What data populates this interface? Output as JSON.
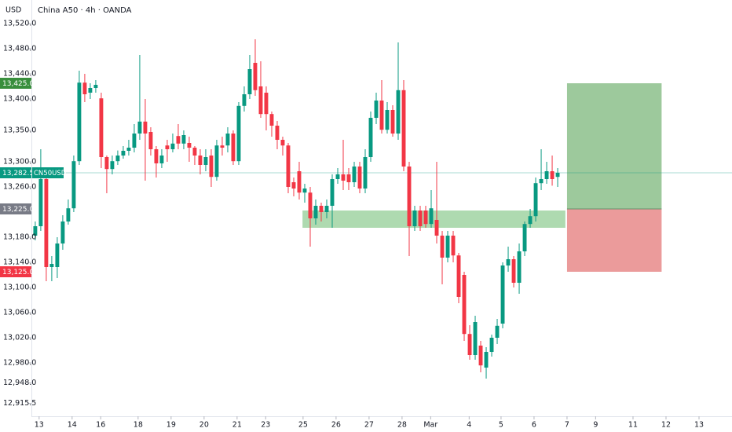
{
  "chart_data": {
    "type": "candlestick",
    "title": "China A50 · 4h · OANDA",
    "currency": "USD",
    "symbol": "CN50USD",
    "up_color": "#089981",
    "down_color": "#f23645",
    "open": [
      13182.5,
      13197.5,
      13272.5,
      13132.5,
      13132.5,
      13170,
      13205,
      13226,
      13301,
      13426,
      13410,
      13417.5,
      13401,
      13307.5,
      13288.5,
      13301,
      13310,
      13317.5,
      13322.5,
      13345,
      13364,
      13347.5,
      13320,
      13297.5,
      13326,
      13320,
      13341,
      13329,
      13330,
      13322.5,
      13310,
      13295,
      13310,
      13276,
      13326,
      13326,
      13345,
      13301,
      13389,
      13407.5,
      13457.5,
      13420,
      13410,
      13376,
      13357.5,
      13335,
      13326,
      13267.5,
      13285,
      13251,
      13251,
      13210,
      13230,
      13220,
      13230,
      13272.5,
      13280,
      13280,
      13267.5,
      13292.5,
      13257.5,
      13307.5,
      13370,
      13397.5,
      13351,
      13382.5,
      13345,
      13414,
      13292.5,
      13197.5,
      13222.5,
      13222.5,
      13201,
      13207.5,
      13182.5,
      13147.5,
      13182.5,
      13151,
      13120,
      13026,
      12992.5,
      13007.5,
      12972.5,
      12997.5,
      13020,
      13042.5,
      13135,
      13145,
      13107.5,
      13157.5,
      13201,
      13213.5,
      13266,
      13272.5,
      13285,
      13276
    ],
    "high": [
      13205,
      13320,
      13285,
      13150,
      13180,
      13215,
      13240,
      13310,
      13445,
      13440,
      13425,
      13430,
      13410,
      13310,
      13310,
      13318,
      13325,
      13335,
      13360,
      13470,
      13400,
      13355,
      13325,
      13320,
      13335,
      13345,
      13360,
      13350,
      13340,
      13325,
      13320,
      13320,
      13320,
      13335,
      13340,
      13355,
      13350,
      13395,
      13420,
      13470,
      13495,
      13460,
      13420,
      13380,
      13365,
      13340,
      13330,
      13275,
      13300,
      13265,
      13260,
      13240,
      13235,
      13240,
      13280,
      13290,
      13335,
      13290,
      13300,
      13300,
      13320,
      13380,
      13410,
      13430,
      13395,
      13390,
      13490,
      13430,
      13300,
      13230,
      13230,
      13230,
      13255,
      13300,
      13190,
      13190,
      13190,
      13155,
      13125,
      13040,
      13055,
      13015,
      13005,
      13025,
      13050,
      13140,
      13165,
      13150,
      13170,
      13205,
      13225,
      13275,
      13320,
      13300,
      13310,
      13290
    ],
    "low": [
      13175,
      13190,
      13110,
      13110,
      13115,
      13160,
      13200,
      13220,
      13295,
      13395,
      13400,
      13410,
      13290,
      13250,
      13280,
      13295,
      13305,
      13310,
      13315,
      13335,
      13270,
      13310,
      13275,
      13290,
      13300,
      13315,
      13320,
      13320,
      13300,
      13295,
      13280,
      13285,
      13260,
      13270,
      13310,
      13315,
      13295,
      13295,
      13380,
      13400,
      13405,
      13370,
      13350,
      13340,
      13320,
      13310,
      13250,
      13245,
      13240,
      13235,
      13165,
      13200,
      13205,
      13210,
      13195,
      13265,
      13255,
      13255,
      13260,
      13250,
      13250,
      13300,
      13360,
      13345,
      13345,
      13340,
      13335,
      13285,
      13150,
      13190,
      13190,
      13195,
      13195,
      13170,
      13105,
      13140,
      13140,
      13075,
      13015,
      12985,
      12985,
      12965,
      12955,
      12990,
      13010,
      13035,
      13125,
      13100,
      13090,
      13150,
      13195,
      13205,
      13255,
      13265,
      13262,
      13260
    ],
    "close": [
      13197.5,
      13272.5,
      13132.5,
      13137.5,
      13170,
      13205,
      13226,
      13301,
      13426,
      13407.5,
      13417.5,
      13422.5,
      13307.5,
      13288.5,
      13301,
      13310,
      13317.5,
      13322.5,
      13345,
      13364,
      13345,
      13320,
      13297.5,
      13310,
      13320,
      13329,
      13329,
      13342.5,
      13322.5,
      13310,
      13295,
      13307.5,
      13276,
      13326,
      13322.5,
      13345,
      13301,
      13389,
      13407.5,
      13447.5,
      13414,
      13376,
      13376,
      13357.5,
      13335,
      13326,
      13260,
      13257.5,
      13251,
      13257.5,
      13210,
      13230,
      13220,
      13230,
      13272.5,
      13280,
      13270,
      13267.5,
      13292.5,
      13257.5,
      13307.5,
      13370,
      13397.5,
      13351,
      13382.5,
      13345,
      13414,
      13292.5,
      13197.5,
      13222.5,
      13197.5,
      13201,
      13226,
      13182.5,
      13147.5,
      13182.5,
      13151,
      13085,
      13026,
      12992.5,
      13045,
      12976,
      12997.5,
      13020,
      13039,
      13135,
      13145,
      13107.5,
      13157.5,
      13201,
      13213.5,
      13266,
      13272.5,
      13285,
      13272.5,
      13282.5
    ],
    "xlim": [
      -0.7,
      126.7
    ],
    "xticks": [
      {
        "value": 0.7,
        "label": "13"
      },
      {
        "value": 6.7,
        "label": "14"
      },
      {
        "value": 11.9,
        "label": "16"
      },
      {
        "value": 18.7,
        "label": "18"
      },
      {
        "value": 24.7,
        "label": "19"
      },
      {
        "value": 30.7,
        "label": "20"
      },
      {
        "value": 36.7,
        "label": "21"
      },
      {
        "value": 41.9,
        "label": "23"
      },
      {
        "value": 48.7,
        "label": "25"
      },
      {
        "value": 54.7,
        "label": "26"
      },
      {
        "value": 60.7,
        "label": "27"
      },
      {
        "value": 66.7,
        "label": "28"
      },
      {
        "value": 71.9,
        "label": "Mar"
      },
      {
        "value": 78.9,
        "label": "4"
      },
      {
        "value": 84.7,
        "label": "5"
      },
      {
        "value": 90.7,
        "label": "6"
      },
      {
        "value": 96.7,
        "label": "7"
      },
      {
        "value": 101.9,
        "label": "9"
      },
      {
        "value": 108.7,
        "label": "11"
      },
      {
        "value": 114.7,
        "label": "12"
      },
      {
        "value": 120.7,
        "label": "13"
      }
    ],
    "ylim": [
      12895,
      13557.5
    ],
    "yticks": [
      {
        "value": 13520,
        "label": "13,520.0"
      },
      {
        "value": 13480,
        "label": "13,480.0"
      },
      {
        "value": 13440,
        "label": "13,440.0"
      },
      {
        "value": 13400,
        "label": "13,400.0"
      },
      {
        "value": 13350,
        "label": "13,350.0"
      },
      {
        "value": 13300,
        "label": "13,300.0"
      },
      {
        "value": 13260,
        "label": "13,260.0"
      },
      {
        "value": 13180,
        "label": "13,180.0"
      },
      {
        "value": 13140,
        "label": "13,140.0"
      },
      {
        "value": 13100,
        "label": "13,100.0"
      },
      {
        "value": 13060,
        "label": "13,060.0"
      },
      {
        "value": 13020,
        "label": "13,020.0"
      },
      {
        "value": 12980,
        "label": "12,980.0"
      },
      {
        "value": 12948,
        "label": "12,948.0"
      },
      {
        "value": 12915.5,
        "label": "12,915.5"
      }
    ],
    "price_labels": [
      {
        "value": 13425,
        "label": "13,425.0",
        "color": "#388e3c"
      },
      {
        "value": 13282.5,
        "label": "13,282.5",
        "color": "#089981"
      },
      {
        "value": 13225,
        "label": "13,225.0",
        "color": "#787b86"
      },
      {
        "value": 13125,
        "label": "13,125.0",
        "color": "#f23645"
      }
    ],
    "last_price": 13282.5,
    "zone": {
      "from": 48.6,
      "to": 96.4,
      "low": 13195,
      "high": 13222.5,
      "color": "#a5d6a7"
    },
    "position": {
      "from": 96.7,
      "to": 113.9,
      "entry": 13225,
      "target": 13425,
      "stop": 13125,
      "profit_color": "#9dc99c",
      "loss_color": "#eb9b9b"
    }
  }
}
